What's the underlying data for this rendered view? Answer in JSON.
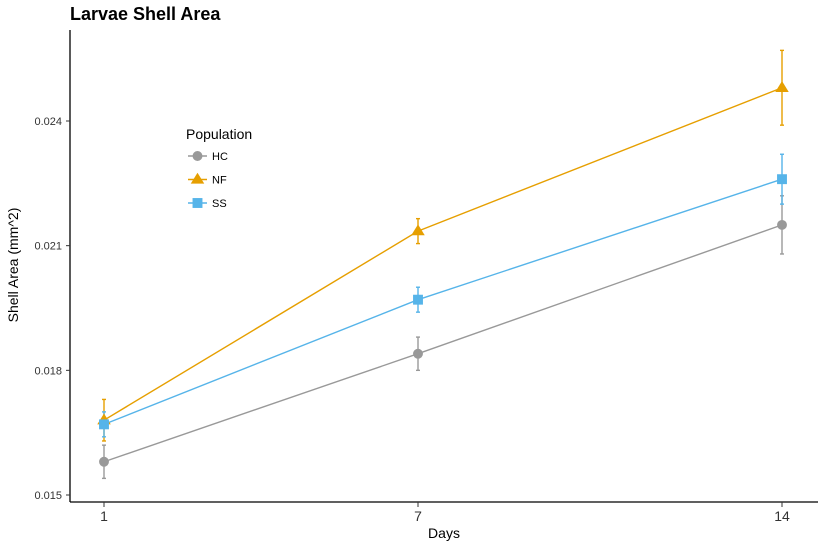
{
  "chart_data": {
    "type": "line",
    "title": "Larvae Shell Area",
    "xlabel": "Days",
    "ylabel": "Shell Area (mm^2)",
    "x": [
      1,
      7,
      14
    ],
    "x_tick_labels": [
      "1",
      "7",
      "14"
    ],
    "ylim": [
      0.0148,
      0.0265
    ],
    "y_ticks": [
      0.015,
      0.018,
      0.021,
      0.024
    ],
    "y_tick_labels": [
      "0.015",
      "0.018",
      "0.021",
      "0.024"
    ],
    "grid": false,
    "legend": {
      "title": "Population",
      "placement": "top-left"
    },
    "series": [
      {
        "name": "HC",
        "color": "#999999",
        "marker": "circle",
        "values": [
          0.0158,
          0.0184,
          0.0215
        ],
        "error": [
          0.0004,
          0.0004,
          0.0007
        ]
      },
      {
        "name": "NF",
        "color": "#E69F00",
        "marker": "triangle",
        "values": [
          0.0168,
          0.02135,
          0.0248
        ],
        "error": [
          0.0005,
          0.0003,
          0.0009
        ]
      },
      {
        "name": "SS",
        "color": "#56B4E9",
        "marker": "square",
        "values": [
          0.0167,
          0.0197,
          0.0226
        ],
        "error": [
          0.0003,
          0.0003,
          0.0006
        ]
      }
    ]
  }
}
